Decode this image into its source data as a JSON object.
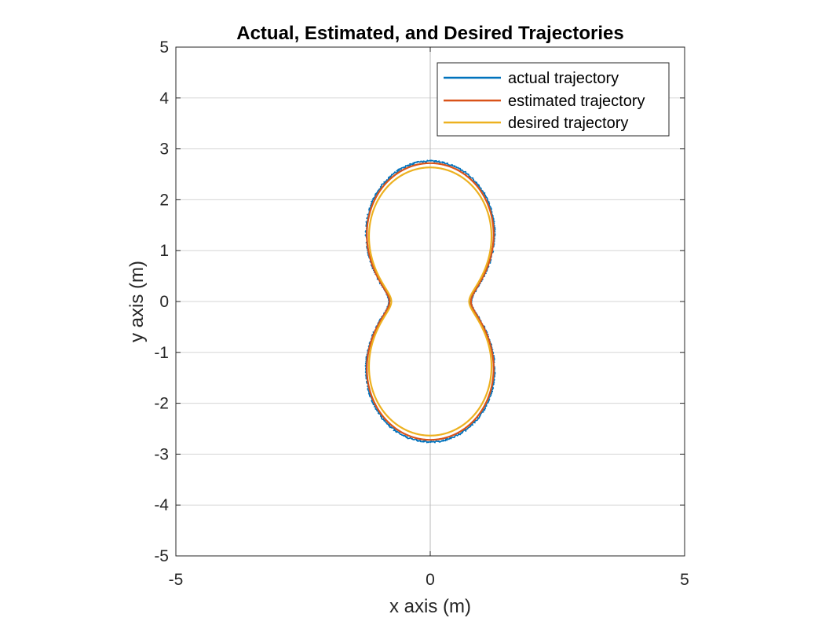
{
  "chart_data": {
    "type": "line",
    "title": "Actual, Estimated, and Desired Trajectories",
    "xlabel": "x axis (m)",
    "ylabel": "y axis (m)",
    "xlim": [
      -5,
      5
    ],
    "ylim": [
      -5,
      5
    ],
    "xticks": [
      -5,
      0,
      5
    ],
    "yticks": [
      5,
      4,
      3,
      2,
      1,
      0,
      -1,
      -2,
      -3,
      -4,
      -5
    ],
    "grid": true,
    "legend_location": "top-right",
    "curve_model": {
      "form": "x = A*sin(t)*(1+B*cos(2t)), y = A*cos(t)*(1+B*cos(2t)), t in [0, 2pi]"
    },
    "series": [
      {
        "name": "actual trajectory",
        "color": "#0072BD",
        "A": 1.78,
        "B": 0.55,
        "noise": 0.035
      },
      {
        "name": "estimated trajectory",
        "color": "#D95319",
        "A": 1.76,
        "B": 0.545,
        "noise": 0.0
      },
      {
        "name": "desired trajectory",
        "color": "#EDB120",
        "A": 1.7,
        "B": 0.55,
        "noise": 0.0
      }
    ]
  }
}
